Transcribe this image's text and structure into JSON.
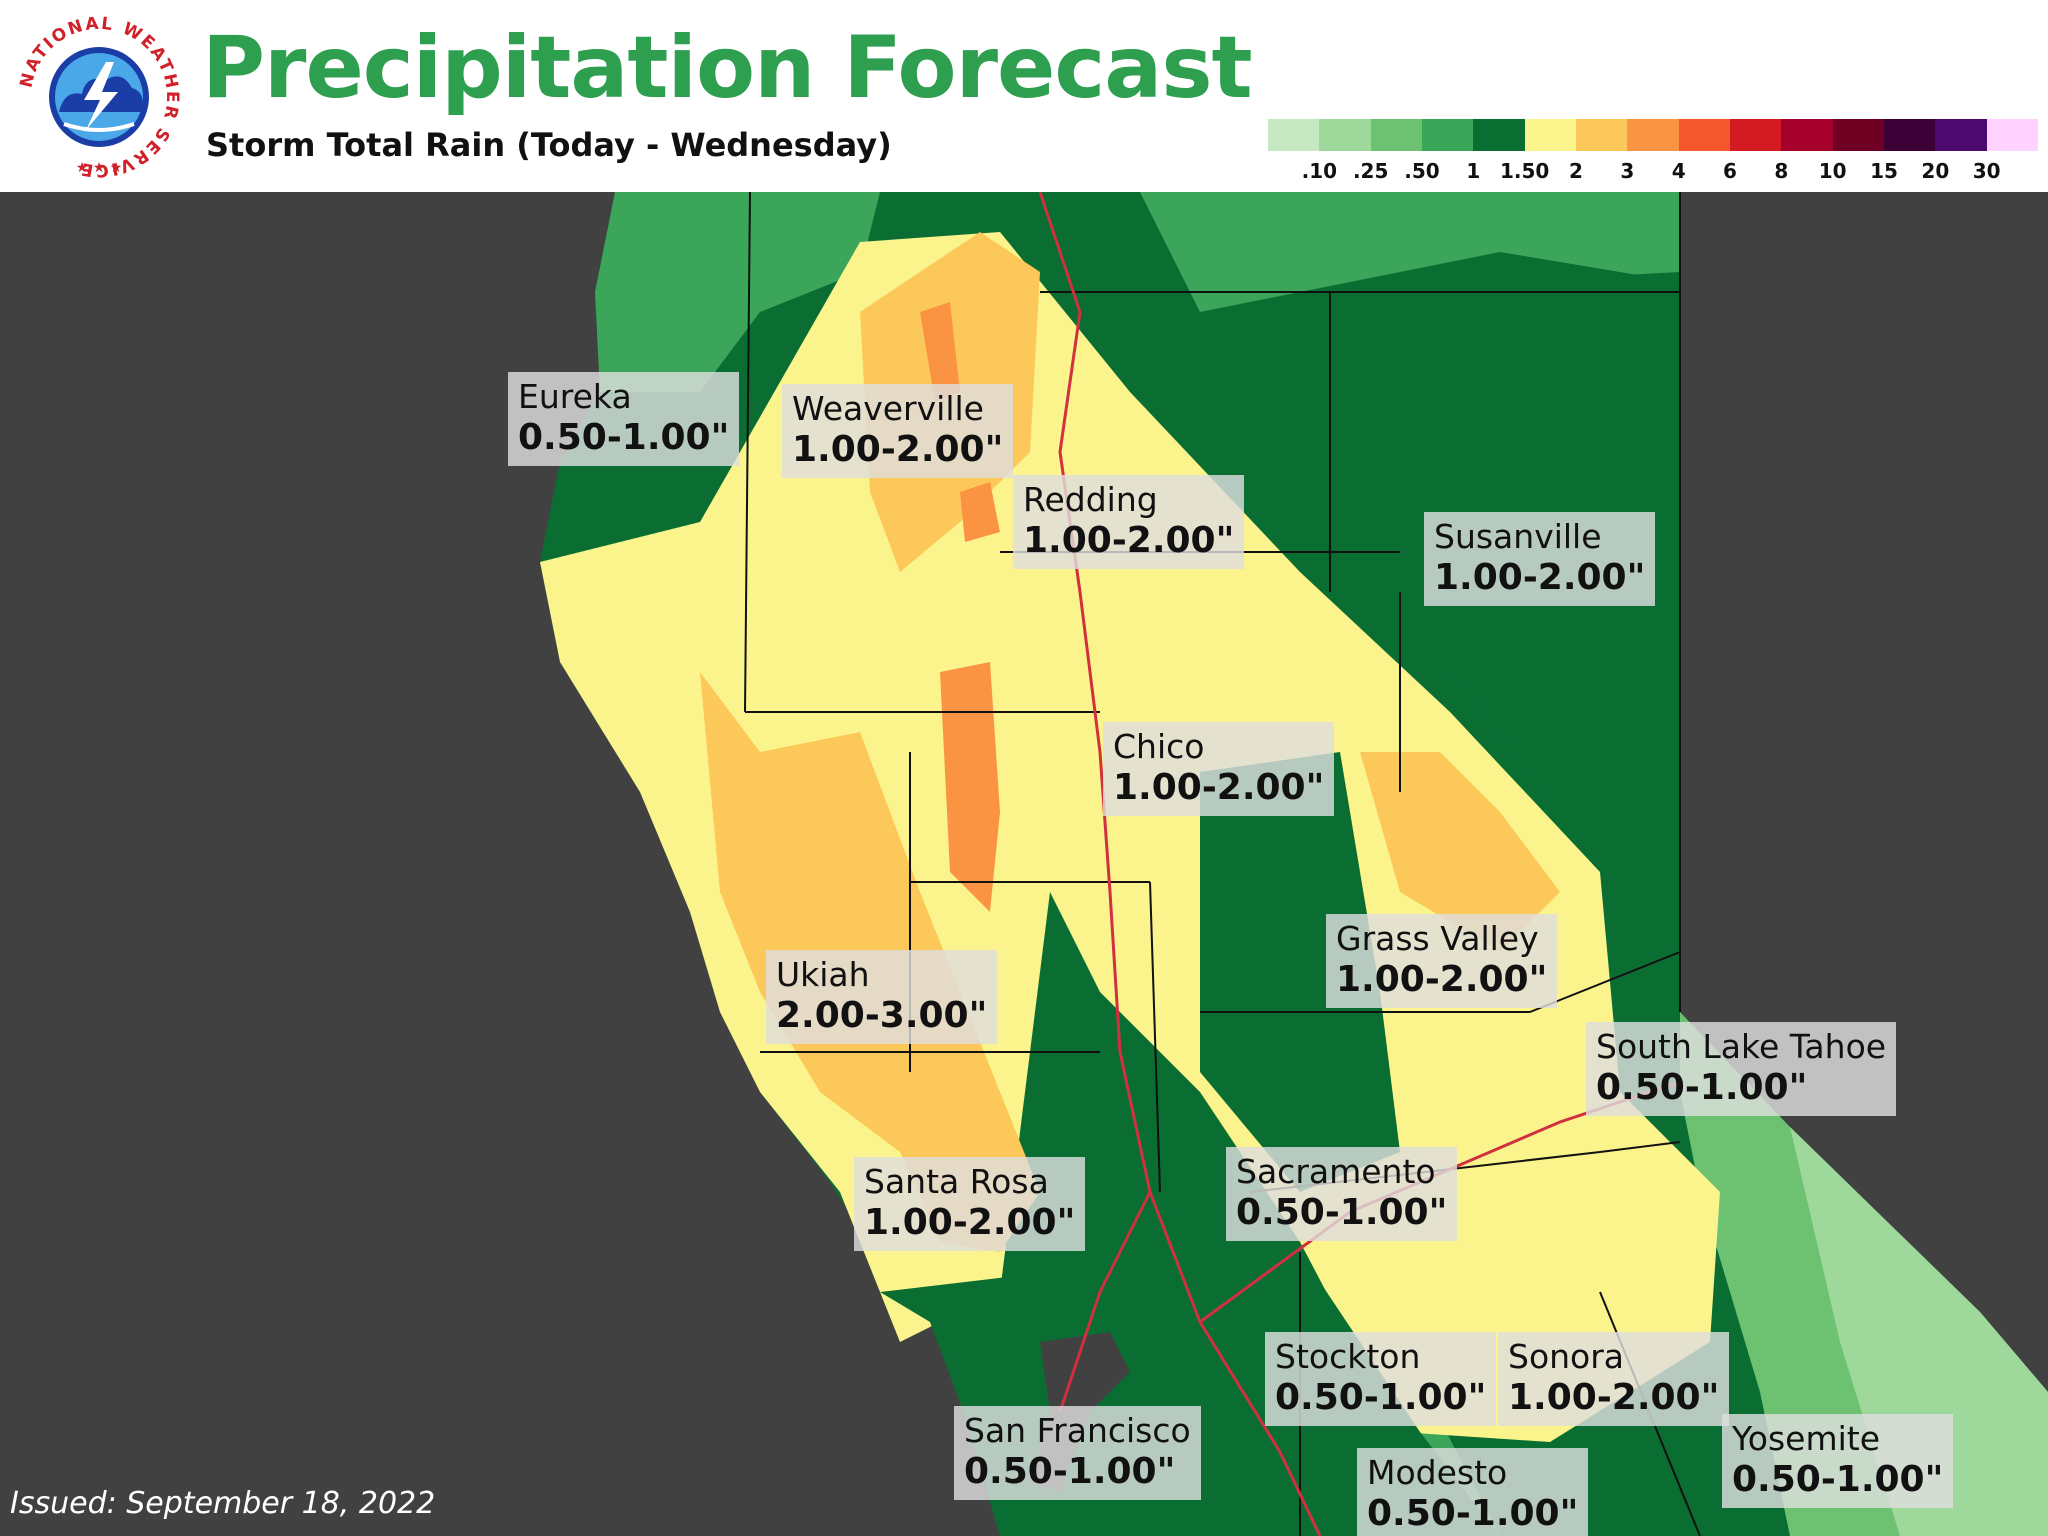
{
  "header": {
    "title": "Precipitation Forecast",
    "subtitle": "Storm Total Rain (Today - Wednesday)",
    "logo": {
      "icon": "nws-logo-icon",
      "ring_text": "NATIONAL WEATHER SERVICE"
    }
  },
  "legend": {
    "colors": [
      "#c6e8c2",
      "#9fd89b",
      "#6cc271",
      "#3ba55a",
      "#0a6e33",
      "#fbf48c",
      "#fcc85a",
      "#fb9442",
      "#f4562e",
      "#d41b22",
      "#a5002b",
      "#6f0023",
      "#3b0036",
      "#4c0a6f",
      "#ffd2ff"
    ],
    "labels": [
      ".10",
      ".25",
      ".50",
      "1",
      "1.50",
      "2",
      "3",
      "4",
      "6",
      "8",
      "10",
      "15",
      "20",
      "30"
    ]
  },
  "cities": [
    {
      "name": "Eureka",
      "value": "0.50-1.00\""
    },
    {
      "name": "Weaverville",
      "value": "1.00-2.00\""
    },
    {
      "name": "Redding",
      "value": "1.00-2.00\""
    },
    {
      "name": "Susanville",
      "value": "1.00-2.00\""
    },
    {
      "name": "Chico",
      "value": "1.00-2.00\""
    },
    {
      "name": "Grass Valley",
      "value": "1.00-2.00\""
    },
    {
      "name": "Ukiah",
      "value": "2.00-3.00\""
    },
    {
      "name": "South Lake Tahoe",
      "value": "0.50-1.00\""
    },
    {
      "name": "Santa Rosa",
      "value": "1.00-2.00\""
    },
    {
      "name": "Sacramento",
      "value": "0.50-1.00\""
    },
    {
      "name": "Stockton",
      "value": "0.50-1.00\""
    },
    {
      "name": "Sonora",
      "value": "1.00-2.00\""
    },
    {
      "name": "San Francisco",
      "value": "0.50-1.00\""
    },
    {
      "name": "Yosemite",
      "value": "0.50-1.00\""
    },
    {
      "name": "Modesto",
      "value": "0.50-1.00\""
    }
  ],
  "footer": {
    "issued": "Issued: September 18, 2022"
  }
}
